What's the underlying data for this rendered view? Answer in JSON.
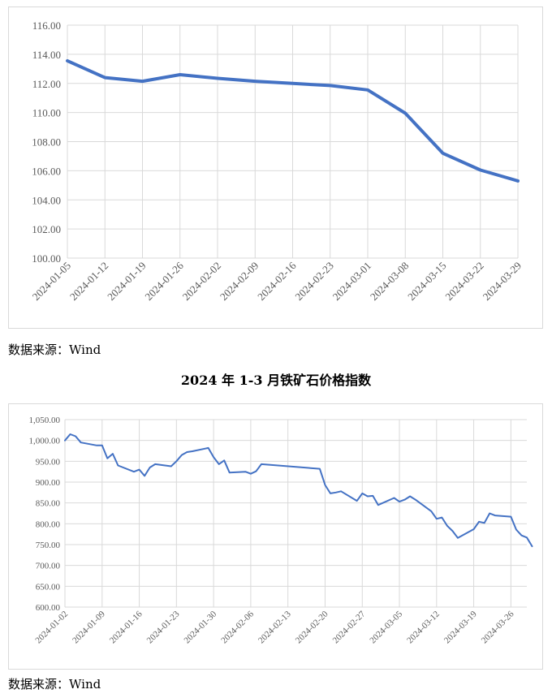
{
  "charts": [
    {
      "source": "数据来源：Wind",
      "chart_data": {
        "type": "line",
        "title": "",
        "xlabel": "",
        "ylabel": "",
        "ylim": [
          100,
          116
        ],
        "yticks": [
          "100.00",
          "102.00",
          "104.00",
          "106.00",
          "108.00",
          "110.00",
          "112.00",
          "114.00",
          "116.00"
        ],
        "grid": true,
        "legend": "none",
        "color": "#4472C4",
        "x": [
          "2024-01-05",
          "2024-01-12",
          "2024-01-19",
          "2024-01-26",
          "2024-02-02",
          "2024-02-09",
          "2024-02-16",
          "2024-02-23",
          "2024-03-01",
          "2024-03-08",
          "2024-03-15",
          "2024-03-22",
          "2024-03-29"
        ],
        "series": [
          {
            "values": [
              113.55,
              112.4,
              112.15,
              112.6,
              112.35,
              112.15,
              112.0,
              111.85,
              111.55,
              109.95,
              107.2,
              106.05,
              105.3
            ]
          }
        ]
      }
    },
    {
      "title": "2024 年 1-3 月铁矿石价格指数",
      "source": "数据来源：Wind",
      "chart_data": {
        "type": "line",
        "title": "2024 年 1-3 月铁矿石价格指数",
        "xlabel": "",
        "ylabel": "",
        "ylim": [
          600,
          1050
        ],
        "yticks": [
          "600.00",
          "650.00",
          "700.00",
          "750.00",
          "800.00",
          "850.00",
          "900.00",
          "950.00",
          "1,000.00",
          "1,050.00"
        ],
        "grid": true,
        "legend": "none",
        "color": "#4472C4",
        "xrange": [
          "2024-01-02",
          "2024-03-29"
        ],
        "xticks": [
          "2024-01-02",
          "2024-01-09",
          "2024-01-16",
          "2024-01-23",
          "2024-01-30",
          "2024-02-06",
          "2024-02-13",
          "2024-02-20",
          "2024-02-27",
          "2024-03-05",
          "2024-03-12",
          "2024-03-19",
          "2024-03-26"
        ],
        "series": [
          {
            "points": [
              [
                "2024-01-02",
                1000
              ],
              [
                "2024-01-03",
                1015
              ],
              [
                "2024-01-04",
                1010
              ],
              [
                "2024-01-05",
                995
              ],
              [
                "2024-01-08",
                988
              ],
              [
                "2024-01-09",
                988
              ],
              [
                "2024-01-10",
                957
              ],
              [
                "2024-01-11",
                968
              ],
              [
                "2024-01-12",
                940
              ],
              [
                "2024-01-15",
                925
              ],
              [
                "2024-01-16",
                930
              ],
              [
                "2024-01-17",
                915
              ],
              [
                "2024-01-18",
                935
              ],
              [
                "2024-01-19",
                943
              ],
              [
                "2024-01-22",
                938
              ],
              [
                "2024-01-23",
                950
              ],
              [
                "2024-01-24",
                965
              ],
              [
                "2024-01-25",
                972
              ],
              [
                "2024-01-26",
                974
              ],
              [
                "2024-01-29",
                982
              ],
              [
                "2024-01-30",
                960
              ],
              [
                "2024-01-31",
                943
              ],
              [
                "2024-02-01",
                952
              ],
              [
                "2024-02-02",
                923
              ],
              [
                "2024-02-05",
                925
              ],
              [
                "2024-02-06",
                920
              ],
              [
                "2024-02-07",
                926
              ],
              [
                "2024-02-08",
                943
              ],
              [
                "2024-02-19",
                932
              ],
              [
                "2024-02-20",
                893
              ],
              [
                "2024-02-21",
                873
              ],
              [
                "2024-02-22",
                875
              ],
              [
                "2024-02-23",
                878
              ],
              [
                "2024-02-26",
                855
              ],
              [
                "2024-02-27",
                873
              ],
              [
                "2024-02-28",
                866
              ],
              [
                "2024-02-29",
                867
              ],
              [
                "2024-03-01",
                845
              ],
              [
                "2024-03-04",
                862
              ],
              [
                "2024-03-05",
                853
              ],
              [
                "2024-03-06",
                858
              ],
              [
                "2024-03-07",
                866
              ],
              [
                "2024-03-08",
                858
              ],
              [
                "2024-03-11",
                830
              ],
              [
                "2024-03-12",
                812
              ],
              [
                "2024-03-13",
                815
              ],
              [
                "2024-03-14",
                795
              ],
              [
                "2024-03-15",
                783
              ],
              [
                "2024-03-16",
                766
              ],
              [
                "2024-03-19",
                787
              ],
              [
                "2024-03-20",
                805
              ],
              [
                "2024-03-21",
                802
              ],
              [
                "2024-03-22",
                825
              ],
              [
                "2024-03-23",
                820
              ],
              [
                "2024-03-25",
                818
              ],
              [
                "2024-03-26",
                817
              ],
              [
                "2024-03-27",
                786
              ],
              [
                "2024-03-28",
                772
              ],
              [
                "2024-03-29",
                767
              ],
              [
                "2024-03-30",
                746
              ]
            ]
          }
        ]
      }
    }
  ]
}
